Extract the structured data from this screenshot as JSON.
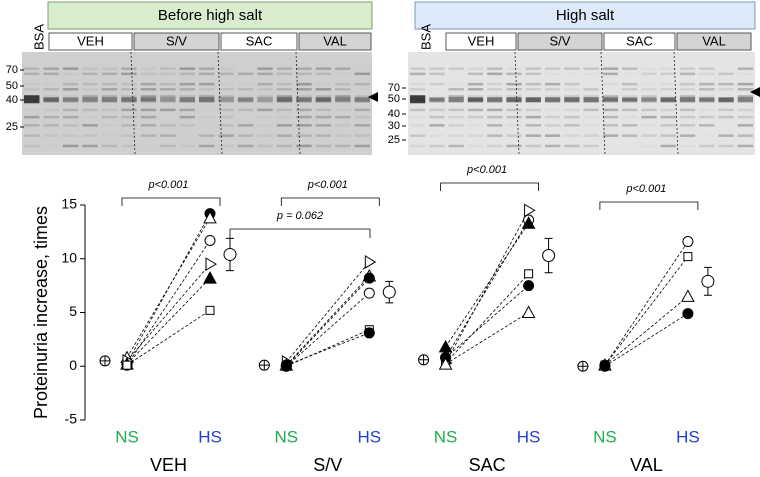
{
  "gels": [
    {
      "title": "Before high salt",
      "bsa": "BSA",
      "lanes": [
        "VEH",
        "S/V",
        "SAC",
        "VAL"
      ],
      "markers": [
        "70",
        "50",
        "40",
        "25"
      ]
    },
    {
      "title": "High salt",
      "bsa": "BSA",
      "lanes": [
        "VEH",
        "S/V",
        "SAC",
        "VAL"
      ],
      "markers": [
        "70",
        "50",
        "40",
        "30",
        "25"
      ]
    }
  ],
  "chart_data": {
    "type": "paired-scatter",
    "y_label": "Proteinuria increase, times",
    "ylim": [
      -5,
      15
    ],
    "yticks": [
      -5,
      0,
      5,
      10,
      15
    ],
    "conditions": [
      {
        "name": "NS",
        "color": "#1fae4a"
      },
      {
        "name": "HS",
        "color": "#1f3fd0"
      }
    ],
    "groups": [
      {
        "name": "VEH",
        "p_label": "p<0.001",
        "mean_ns": 0.5,
        "mean_hs": 10.4,
        "sem_hs": 1.5,
        "animals": [
          {
            "marker": "filled-circle",
            "ns": 0.3,
            "hs": 14.2
          },
          {
            "marker": "open-triangle",
            "ns": 0.8,
            "hs": 13.8
          },
          {
            "marker": "open-circle",
            "ns": 0.1,
            "hs": 11.7
          },
          {
            "marker": "right-triangle",
            "ns": 0.5,
            "hs": 9.5
          },
          {
            "marker": "filled-triangle",
            "ns": 0.2,
            "hs": 8.2
          },
          {
            "marker": "open-square",
            "ns": 0.1,
            "hs": 5.2
          }
        ]
      },
      {
        "name": "S/V",
        "p_label": "p<0.001",
        "mean_ns": 0.1,
        "mean_hs": 6.9,
        "sem_hs": 1.0,
        "animals": [
          {
            "marker": "right-triangle",
            "ns": 0.4,
            "hs": 9.7
          },
          {
            "marker": "open-triangle",
            "ns": 0.1,
            "hs": 8.4
          },
          {
            "marker": "filled-circle",
            "ns": 0.0,
            "hs": 8.2
          },
          {
            "marker": "open-circle",
            "ns": 0.0,
            "hs": 6.8
          },
          {
            "marker": "open-square",
            "ns": 0.0,
            "hs": 3.4
          },
          {
            "marker": "filled-circle",
            "ns": 0.1,
            "hs": 3.1
          }
        ]
      },
      {
        "name": "SAC",
        "p_label": "p<0.001",
        "mean_ns": 0.6,
        "mean_hs": 10.3,
        "sem_hs": 1.6,
        "animals": [
          {
            "marker": "right-triangle",
            "ns": 0.3,
            "hs": 14.5
          },
          {
            "marker": "open-circle",
            "ns": 0.8,
            "hs": 13.6
          },
          {
            "marker": "filled-triangle",
            "ns": 1.8,
            "hs": 13.3
          },
          {
            "marker": "open-square",
            "ns": 0.3,
            "hs": 8.6
          },
          {
            "marker": "filled-circle",
            "ns": 0.8,
            "hs": 7.5
          },
          {
            "marker": "open-triangle",
            "ns": 0.2,
            "hs": 5.0
          }
        ]
      },
      {
        "name": "VAL",
        "p_label": "p<0.001",
        "mean_ns": 0.0,
        "mean_hs": 7.9,
        "sem_hs": 1.3,
        "animals": [
          {
            "marker": "open-circle",
            "ns": 0.1,
            "hs": 11.6
          },
          {
            "marker": "open-square",
            "ns": 0.1,
            "hs": 10.2
          },
          {
            "marker": "open-triangle",
            "ns": 0.1,
            "hs": 6.5
          },
          {
            "marker": "filled-circle",
            "ns": 0.0,
            "hs": 4.9
          }
        ]
      }
    ],
    "comparison_label": "p = 0.062"
  }
}
